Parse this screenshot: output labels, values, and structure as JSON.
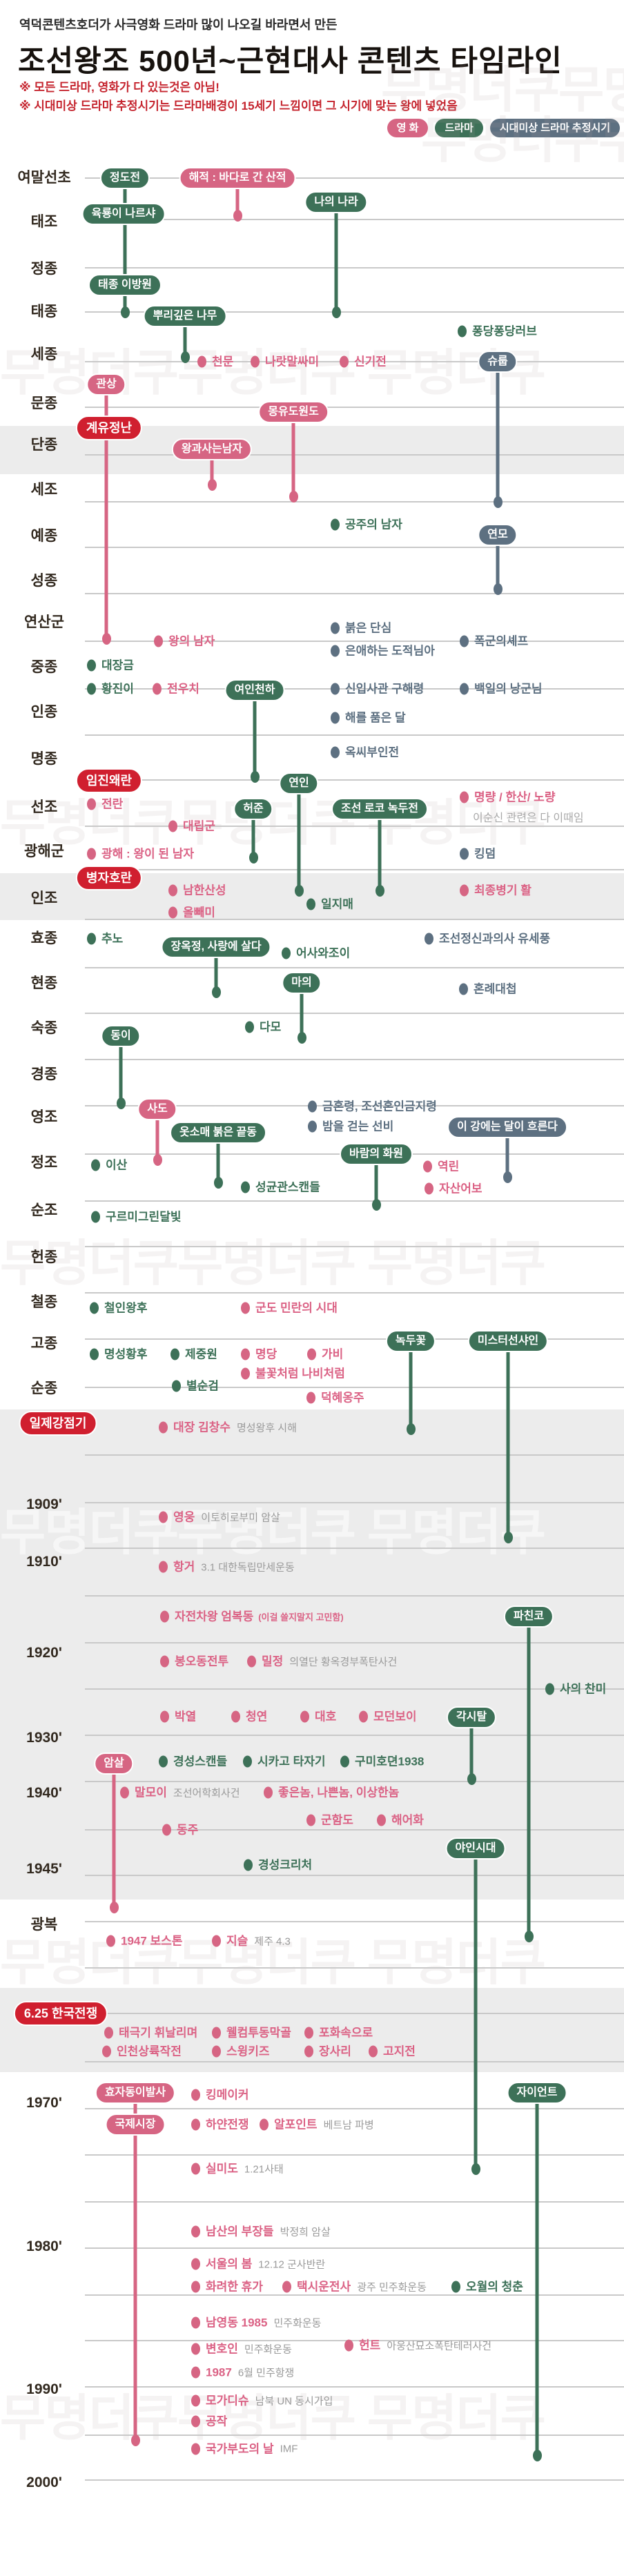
{
  "header": {
    "subtitle": "역덕콘텐츠호더가 사극영화 드라마 많이 나오길 바라면서 만든",
    "title": "조선왕조 500년~근현대사 콘텐츠 타임라인",
    "note1": "※ 모든 드라마, 영화가 다 있는것은 아님!",
    "note2": "※ 시대미상 드라마 추정시기는 드라마배경이 15세기 느낌이면 그 시기에 맞는 왕에 넣었음"
  },
  "legend": {
    "movie": "영 화",
    "drama": "드라마",
    "unknown": "시대미상 드라마 추정시기"
  },
  "colors": {
    "movie": "#d66583",
    "drama": "#3d7158",
    "unknown": "#5d7081",
    "event": "#d01f2f",
    "movie_text": "#db6285",
    "drama_text": "#3d7158",
    "unknown_text": "#5d7081",
    "subtext": "#9a9a9a",
    "gridline": "#c9c9c9",
    "band": "#ececec",
    "label": "#32291f",
    "note_red": "#c5242e",
    "watermark_light": "rgba(176,160,160,0.13)",
    "watermark_on_band": "rgba(255,255,255,0.55)"
  },
  "watermark_text": "무명더쿠무명더쿠 무명더쿠",
  "timeline": {
    "bands": [
      [
        617,
        70
      ],
      [
        1265,
        68
      ],
      [
        2042,
        710
      ],
      [
        2880,
        122
      ]
    ],
    "watermarks": [
      [
        552,
        95,
        "w"
      ],
      [
        610,
        168,
        "w"
      ],
      [
        0,
        505,
        "w"
      ],
      [
        0,
        1157,
        "w"
      ],
      [
        0,
        1795,
        "w"
      ],
      [
        0,
        2185,
        "wb"
      ],
      [
        0,
        2808,
        "w"
      ],
      [
        0,
        3468,
        "w"
      ]
    ],
    "lines": [
      258,
      318,
      388,
      452,
      524,
      590,
      659,
      727,
      793,
      860,
      929,
      998,
      1065,
      1130,
      1197,
      1260,
      1332,
      1402,
      1468,
      1535,
      1602,
      1672,
      1740,
      1806,
      1873,
      1940,
      2010,
      2108,
      2177,
      2243,
      2312,
      2380,
      2447,
      2514,
      2581,
      2651,
      2717,
      2784,
      2851,
      2917,
      2987,
      3055,
      3122,
      3190,
      3257,
      3325,
      3391,
      3458,
      3528,
      3593
    ],
    "labels": [
      [
        "여말선초",
        256
      ],
      [
        "태조",
        320
      ],
      [
        "정종",
        388
      ],
      [
        "태종",
        450
      ],
      [
        "세종",
        512
      ],
      [
        "문종",
        583
      ],
      [
        "단종",
        643
      ],
      [
        "세조",
        708
      ],
      [
        "예종",
        775
      ],
      [
        "성종",
        840
      ],
      [
        "연산군",
        900
      ],
      [
        "중종",
        965
      ],
      [
        "인종",
        1030
      ],
      [
        "명종",
        1098
      ],
      [
        "선조",
        1168
      ],
      [
        "광해군",
        1232
      ],
      [
        "인조",
        1300
      ],
      [
        "효종",
        1358
      ],
      [
        "현종",
        1423
      ],
      [
        "숙종",
        1488
      ],
      [
        "경종",
        1555
      ],
      [
        "영조",
        1617
      ],
      [
        "정조",
        1683
      ],
      [
        "순조",
        1752
      ],
      [
        "헌종",
        1820
      ],
      [
        "철종",
        1885
      ],
      [
        "고종",
        1945
      ],
      [
        "순종",
        2010
      ],
      [
        "1909'",
        2180
      ],
      [
        "1910'",
        2263
      ],
      [
        "1920'",
        2395
      ],
      [
        "1930'",
        2518
      ],
      [
        "1940'",
        2598
      ],
      [
        "1945'",
        2708
      ],
      [
        "광복",
        2787
      ],
      [
        "1970'",
        3047
      ],
      [
        "1980'",
        3255
      ],
      [
        "1990'",
        3462
      ],
      [
        "2000'",
        3597
      ]
    ],
    "events": [
      [
        "계유정난",
        158,
        620
      ],
      [
        "임진왜란",
        158,
        1131
      ],
      [
        "병자호란",
        158,
        1272
      ],
      [
        "일제강점기",
        84,
        2062
      ],
      [
        "6.25 한국전쟁",
        88,
        2917
      ]
    ],
    "stems": [
      [
        181,
        258,
        452,
        "d"
      ],
      [
        344,
        262,
        312,
        "m"
      ],
      [
        487,
        297,
        452,
        "d"
      ],
      [
        268,
        462,
        517,
        "d"
      ],
      [
        721,
        530,
        727,
        "u"
      ],
      [
        154,
        560,
        925,
        "m"
      ],
      [
        425,
        601,
        719,
        "m"
      ],
      [
        307,
        655,
        702,
        "m"
      ],
      [
        721,
        788,
        853,
        "u"
      ],
      [
        369,
        1004,
        1125,
        "d"
      ],
      [
        367,
        1176,
        1242,
        "d"
      ],
      [
        433,
        1139,
        1290,
        "d"
      ],
      [
        550,
        1176,
        1290,
        "d"
      ],
      [
        313,
        1376,
        1437,
        "d"
      ],
      [
        437,
        1428,
        1503,
        "d"
      ],
      [
        175,
        1505,
        1598,
        "d"
      ],
      [
        228,
        1611,
        1680,
        "m"
      ],
      [
        316,
        1645,
        1713,
        "d"
      ],
      [
        735,
        1637,
        1705,
        "u"
      ],
      [
        545,
        1676,
        1745,
        "d"
      ],
      [
        595,
        1948,
        2070,
        "d"
      ],
      [
        736,
        1948,
        2227,
        "d"
      ],
      [
        766,
        2346,
        2805,
        "d"
      ],
      [
        683,
        2492,
        2577,
        "d"
      ],
      [
        165,
        2559,
        2763,
        "m"
      ],
      [
        689,
        2682,
        3142,
        "d"
      ],
      [
        196,
        3036,
        3535,
        "m"
      ],
      [
        778,
        3036,
        3557,
        "d"
      ]
    ],
    "pills": [
      [
        "정도전",
        "d",
        181,
        258
      ],
      [
        "육룡이 나르샤",
        "d",
        179,
        310
      ],
      [
        "해적 : 바다로 간 산적",
        "m",
        344,
        258
      ],
      [
        "나의 나라",
        "d",
        487,
        293
      ],
      [
        "태종 이방원",
        "d",
        181,
        413
      ],
      [
        "뿌리깊은 나무",
        "d",
        268,
        458
      ],
      [
        "슈룹",
        "u",
        721,
        524
      ],
      [
        "관상",
        "m",
        154,
        557
      ],
      [
        "몽유도원도",
        "m",
        425,
        597
      ],
      [
        "왕과사는남자",
        "m",
        307,
        651
      ],
      [
        "연모",
        "u",
        721,
        775
      ],
      [
        "여인천하",
        "d",
        369,
        1000
      ],
      [
        "허준",
        "d",
        367,
        1172
      ],
      [
        "연인",
        "d",
        433,
        1135
      ],
      [
        "조선 로코 녹두전",
        "d",
        550,
        1172
      ],
      [
        "장옥정, 사랑에 살다",
        "d",
        313,
        1372
      ],
      [
        "마의",
        "d",
        437,
        1424
      ],
      [
        "동이",
        "d",
        175,
        1501
      ],
      [
        "사도",
        "m",
        228,
        1607
      ],
      [
        "옷소매 붉은 끝동",
        "d",
        316,
        1641
      ],
      [
        "이 강에는 달이 흐른다",
        "u",
        735,
        1633
      ],
      [
        "바람의 화원",
        "d",
        545,
        1672
      ],
      [
        "녹두꽃",
        "d",
        595,
        1943
      ],
      [
        "미스터선샤인",
        "d",
        736,
        1943
      ],
      [
        "파친코",
        "d",
        766,
        2342
      ],
      [
        "각시탈",
        "d",
        683,
        2488
      ],
      [
        "암살",
        "m",
        165,
        2555
      ],
      [
        "야인시대",
        "d",
        689,
        2678
      ],
      [
        "효자동이발사",
        "m",
        196,
        3032
      ],
      [
        "국제시장",
        "m",
        196,
        3078
      ],
      [
        "자이언트",
        "d",
        778,
        3032
      ]
    ],
    "dots": [
      [
        "퐁당퐁당러브",
        "d",
        670,
        480
      ],
      [
        "천문",
        "m",
        293,
        524
      ],
      [
        "나랏말싸미",
        "m",
        370,
        524
      ],
      [
        "신기전",
        "m",
        499,
        524
      ],
      [
        "공주의 남자",
        "d",
        486,
        760
      ],
      [
        "왕의 남자",
        "m",
        230,
        929
      ],
      [
        "붉은 단심",
        "u",
        486,
        910
      ],
      [
        "은애하는 도적님아",
        "u",
        486,
        943
      ],
      [
        "폭군의셰프",
        "u",
        673,
        929
      ],
      [
        "대장금",
        "d",
        133,
        964
      ],
      [
        "황진이",
        "d",
        133,
        998
      ],
      [
        "전우치",
        "m",
        228,
        998
      ],
      [
        "신입사관 구해령",
        "u",
        486,
        998
      ],
      [
        "백일의 낭군님",
        "u",
        673,
        998
      ],
      [
        "해를 품은 달",
        "u",
        486,
        1040
      ],
      [
        "옥씨부인전",
        "u",
        486,
        1090
      ],
      [
        "전란",
        "m",
        133,
        1165
      ],
      [
        "명량 / 한산/ 노량",
        "m",
        673,
        1155,
        "이순신 관련은 다 이때임",
        1
      ],
      [
        "대립군",
        "m",
        251,
        1197
      ],
      [
        "광해 : 왕이 된 남자",
        "m",
        133,
        1237
      ],
      [
        "킹덤",
        "u",
        673,
        1237
      ],
      [
        "남한산성",
        "m",
        251,
        1290
      ],
      [
        "올빼미",
        "m",
        251,
        1322
      ],
      [
        "일지매",
        "d",
        451,
        1310
      ],
      [
        "최종병기 활",
        "m",
        673,
        1290
      ],
      [
        "추노",
        "d",
        133,
        1360
      ],
      [
        "어사와조이",
        "d",
        415,
        1381
      ],
      [
        "조선정신과의사 유세풍",
        "u",
        622,
        1360
      ],
      [
        "혼례대첩",
        "u",
        672,
        1433
      ],
      [
        "다모",
        "d",
        362,
        1488
      ],
      [
        "금혼령, 조선혼인금지령",
        "u",
        453,
        1603
      ],
      [
        "밤을 걷는 선비",
        "u",
        453,
        1632
      ],
      [
        "역린",
        "m",
        620,
        1690
      ],
      [
        "이산",
        "d",
        139,
        1688
      ],
      [
        "성균관스캔들",
        "d",
        356,
        1720
      ],
      [
        "자산어보",
        "m",
        622,
        1722
      ],
      [
        "구르미그린달빛",
        "d",
        139,
        1763
      ],
      [
        "철인왕후",
        "d",
        137,
        1895
      ],
      [
        "군도 민란의 시대",
        "m",
        356,
        1895
      ],
      [
        "명성황후",
        "d",
        137,
        1962
      ],
      [
        "제중원",
        "d",
        254,
        1962
      ],
      [
        "명당",
        "m",
        356,
        1962
      ],
      [
        "가비",
        "m",
        452,
        1962
      ],
      [
        "불꽃처럼 나비처럼",
        "m",
        356,
        1990
      ],
      [
        "별순검",
        "d",
        256,
        2008
      ],
      [
        "덕혜옹주",
        "m",
        451,
        2025
      ],
      [
        "대장 김창수",
        "m",
        237,
        2068,
        "명성왕후 시해",
        0
      ],
      [
        "영웅",
        "m",
        237,
        2198,
        "이토히로부미 암살",
        0
      ],
      [
        "항거",
        "m",
        237,
        2270,
        "3.1 대한독립만세운동",
        0
      ],
      [
        "자전차왕 엄복동",
        "m",
        239,
        2342,
        "(이걸 쓸지말지 고민함)",
        2
      ],
      [
        "봉오동전투",
        "m",
        239,
        2407
      ],
      [
        "밀정",
        "m",
        365,
        2407,
        "의열단 황옥경부폭탄사건",
        0
      ],
      [
        "사의 찬미",
        "d",
        797,
        2447
      ],
      [
        "박열",
        "m",
        239,
        2487
      ],
      [
        "청연",
        "m",
        342,
        2487
      ],
      [
        "대호",
        "m",
        442,
        2487
      ],
      [
        "모던보이",
        "m",
        527,
        2487
      ],
      [
        "경성스캔들",
        "d",
        237,
        2552
      ],
      [
        "시카고 타자기",
        "d",
        359,
        2552
      ],
      [
        "구미호뎐1938",
        "d",
        500,
        2552
      ],
      [
        "말모이",
        "m",
        181,
        2597,
        "조선어학회사건",
        0
      ],
      [
        "좋은놈, 나쁜놈, 이상한놈",
        "m",
        389,
        2597
      ],
      [
        "군함도",
        "m",
        451,
        2637
      ],
      [
        "해어화",
        "m",
        553,
        2637
      ],
      [
        "동주",
        "m",
        242,
        2651
      ],
      [
        "경성크리처",
        "d",
        360,
        2702
      ],
      [
        "1947 보스톤",
        "m",
        161,
        2812
      ],
      [
        "지슬",
        "m",
        314,
        2812,
        "제주 4.3",
        0
      ],
      [
        "태극기 휘날리며",
        "m",
        158,
        2945
      ],
      [
        "웰컴투동막골",
        "m",
        314,
        2945
      ],
      [
        "포화속으로",
        "m",
        448,
        2945
      ],
      [
        "인천상륙작전",
        "m",
        155,
        2972
      ],
      [
        "스윙키즈",
        "m",
        314,
        2972
      ],
      [
        "장사리",
        "m",
        448,
        2972
      ],
      [
        "고지전",
        "m",
        541,
        2972
      ],
      [
        "킹메이커",
        "m",
        284,
        3035
      ],
      [
        "하얀전쟁",
        "m",
        284,
        3078
      ],
      [
        "알포인트",
        "m",
        383,
        3078,
        "베트남 파병",
        0
      ],
      [
        "실미도",
        "m",
        284,
        3142,
        "1.21사태",
        0
      ],
      [
        "남산의 부장들",
        "m",
        284,
        3233,
        "박정희 암살",
        0
      ],
      [
        "서울의 봄",
        "m",
        284,
        3280,
        "12.12 군사반란",
        0
      ],
      [
        "화려한 휴가",
        "m",
        284,
        3313
      ],
      [
        "택시운전사",
        "m",
        416,
        3313,
        "광주 민주화운동",
        0
      ],
      [
        "오월의 청춘",
        "d",
        661,
        3313
      ],
      [
        "남영동 1985",
        "m",
        284,
        3365,
        "민주화운동",
        0
      ],
      [
        "변호인",
        "m",
        284,
        3403,
        "민주화운동",
        0
      ],
      [
        "헌트",
        "m",
        506,
        3398,
        "아웅산묘소폭탄테러사건",
        0
      ],
      [
        "1987",
        "m",
        284,
        3437,
        "6월 민주항쟁",
        0
      ],
      [
        "모가디슈",
        "m",
        284,
        3478,
        "남북 UN 동시가입",
        0
      ],
      [
        "공작",
        "m",
        284,
        3508
      ],
      [
        "국가부도의 날",
        "m",
        284,
        3548,
        "IMF",
        0
      ]
    ]
  }
}
